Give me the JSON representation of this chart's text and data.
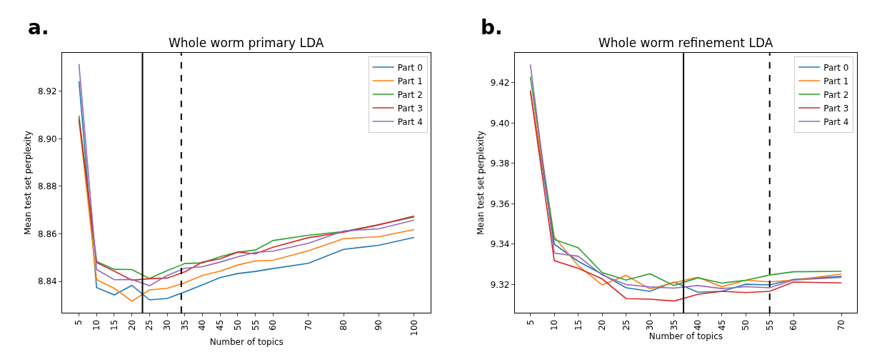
{
  "chart_data": [
    {
      "type": "line",
      "title": "Whole worm primary LDA",
      "xlabel": "Number of topics",
      "ylabel": "Mean test set perplexity",
      "annotations": [
        "a."
      ],
      "x": [
        5,
        10,
        15,
        20,
        25,
        30,
        35,
        40,
        45,
        50,
        55,
        60,
        70,
        80,
        90,
        100
      ],
      "series": [
        {
          "name": "Part 0",
          "color": "#1f77b4",
          "values": [
            8.9243,
            8.8374,
            8.8343,
            8.8383,
            8.8322,
            8.8328,
            8.8356,
            8.8385,
            8.8416,
            8.8433,
            8.8442,
            8.8454,
            8.8476,
            8.8535,
            8.8552,
            8.8585
          ]
        },
        {
          "name": "Part 1",
          "color": "#ff7f0e",
          "values": [
            8.908,
            8.8407,
            8.8371,
            8.8317,
            8.8364,
            8.8371,
            8.8394,
            8.8425,
            8.8443,
            8.8469,
            8.8486,
            8.8489,
            8.8529,
            8.858,
            8.8588,
            8.8618
          ]
        },
        {
          "name": "Part 2",
          "color": "#2ca02c",
          "values": [
            8.9098,
            8.8484,
            8.8451,
            8.845,
            8.8412,
            8.8445,
            8.8475,
            8.8478,
            8.8504,
            8.8523,
            8.8532,
            8.8572,
            8.8594,
            8.861,
            8.8639,
            8.8671
          ]
        },
        {
          "name": "Part 3",
          "color": "#d62728",
          "values": [
            8.9084,
            8.8479,
            8.8443,
            8.8405,
            8.8411,
            8.8414,
            8.844,
            8.8481,
            8.8495,
            8.8523,
            8.8516,
            8.8544,
            8.8584,
            8.8607,
            8.8638,
            8.8675
          ]
        },
        {
          "name": "Part 4",
          "color": "#9467bd",
          "values": [
            8.9315,
            8.845,
            8.8407,
            8.8408,
            8.8382,
            8.8425,
            8.8455,
            8.8462,
            8.8481,
            8.8503,
            8.8522,
            8.8527,
            8.856,
            8.8612,
            8.8621,
            8.8658
          ]
        }
      ],
      "xlim": [
        0.25,
        104.75
      ],
      "xticks": [
        5,
        10,
        15,
        20,
        25,
        30,
        35,
        40,
        45,
        50,
        55,
        60,
        70,
        80,
        90,
        100
      ],
      "ylim": [
        8.8268,
        8.9361
      ],
      "yticks": [
        8.84,
        8.86,
        8.88,
        {
          "value": 8.9,
          "label": "8.90"
        },
        8.92
      ],
      "ref_lines": [
        {
          "axis": "x",
          "value": 23,
          "color": "#000000",
          "line_style": "solid"
        },
        {
          "axis": "x",
          "value": 34,
          "color": "#000000",
          "line_style": "dashed"
        }
      ],
      "legend": "top right",
      "marker": "none",
      "line_style": "solid"
    },
    {
      "type": "line",
      "title": "Whole worm refinement LDA",
      "xlabel": "Number of topics",
      "ylabel": "Mean test set perplexity",
      "annotations": [
        "b."
      ],
      "x": [
        5,
        10,
        15,
        20,
        25,
        30,
        35,
        40,
        45,
        50,
        55,
        60,
        70
      ],
      "series": [
        {
          "name": "Part 0",
          "color": "#1f77b4",
          "values": [
            9.4162,
            9.34,
            9.3315,
            9.3251,
            9.3184,
            9.3166,
            9.3212,
            9.3162,
            9.3166,
            9.3201,
            9.3198,
            9.3225,
            9.324
          ]
        },
        {
          "name": "Part 1",
          "color": "#ff7f0e",
          "values": [
            9.416,
            9.3436,
            9.3293,
            9.3198,
            9.3245,
            9.3178,
            9.3209,
            9.3236,
            9.3189,
            9.3221,
            9.3213,
            9.3222,
            9.3252
          ]
        },
        {
          "name": "Part 2",
          "color": "#2ca02c",
          "values": [
            9.4229,
            9.3423,
            9.3382,
            9.3259,
            9.3222,
            9.3253,
            9.3195,
            9.3233,
            9.3207,
            9.3221,
            9.3247,
            9.3263,
            9.3265
          ]
        },
        {
          "name": "Part 3",
          "color": "#d62728",
          "values": [
            9.4159,
            9.3318,
            9.328,
            9.3228,
            9.313,
            9.3127,
            9.3118,
            9.3151,
            9.3166,
            9.316,
            9.3166,
            9.3212,
            9.3208
          ]
        },
        {
          "name": "Part 4",
          "color": "#9467bd",
          "values": [
            9.429,
            9.3355,
            9.334,
            9.3247,
            9.32,
            9.3188,
            9.3182,
            9.3195,
            9.318,
            9.3189,
            9.3184,
            9.3222,
            9.3235
          ]
        }
      ],
      "xlim": [
        1.75,
        73.25
      ],
      "xticks": [
        5,
        10,
        15,
        20,
        25,
        30,
        35,
        40,
        45,
        50,
        55,
        60,
        70
      ],
      "ylim": [
        9.306,
        9.4347
      ],
      "yticks": [
        9.32,
        9.34,
        9.36,
        9.38,
        {
          "value": 9.4,
          "label": "9.40"
        },
        9.42
      ],
      "ref_lines": [
        {
          "axis": "x",
          "value": 37,
          "color": "#000000",
          "line_style": "solid"
        },
        {
          "axis": "x",
          "value": 55,
          "color": "#000000",
          "line_style": "dashed"
        }
      ],
      "legend": "top right",
      "marker": "none",
      "line_style": "solid"
    }
  ]
}
